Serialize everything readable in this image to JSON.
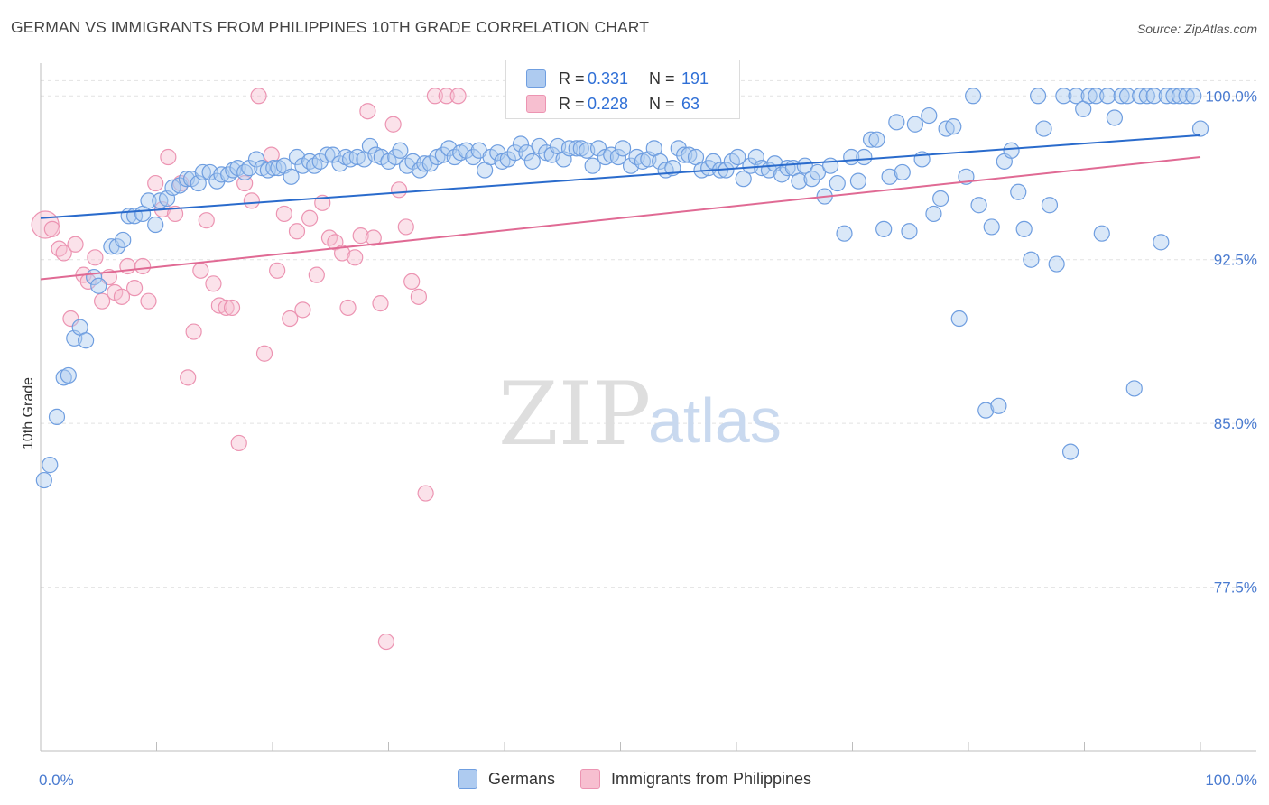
{
  "title": "GERMAN VS IMMIGRANTS FROM PHILIPPINES 10TH GRADE CORRELATION CHART",
  "source": "Source: ZipAtlas.com",
  "watermark": {
    "zip": "ZIP",
    "atlas": "atlas"
  },
  "legend": {
    "rows": [
      {
        "r_label": "R =",
        "r_value": "0.331",
        "n_label": "N =",
        "n_value": "191"
      },
      {
        "r_label": "R =",
        "r_value": "0.228",
        "n_label": "N =",
        "n_value": "63"
      }
    ]
  },
  "bottom_legend": {
    "germans": "Germans",
    "philippines": "Immigrants from Philippines"
  },
  "colors": {
    "blue_fill": "#aecbf0",
    "blue_stroke": "#6f9ee0",
    "blue_line": "#2a6bcc",
    "pink_fill": "#f7bfd0",
    "pink_stroke": "#ec94b2",
    "pink_line": "#e06a94",
    "axis_label": "#4a7bd0"
  },
  "chart_data": {
    "type": "scatter",
    "title": "GERMAN VS IMMIGRANTS FROM PHILIPPINES 10TH GRADE CORRELATION CHART",
    "xlabel": "",
    "ylabel": "10th Grade",
    "xlim": [
      0,
      100
    ],
    "ylim": [
      70.0,
      101.5
    ],
    "x_tick_labels": [
      "0.0%",
      "100.0%"
    ],
    "y_ticks": [
      77.5,
      85.0,
      92.5,
      100.0
    ],
    "y_tick_labels": [
      "77.5%",
      "85.0%",
      "92.5%",
      "100.0%"
    ],
    "grid": true,
    "legend_position": "top-center",
    "series": [
      {
        "name": "Germans",
        "r": 0.331,
        "n": 191,
        "trend": {
          "x": [
            0,
            100
          ],
          "y": [
            94.4,
            98.2
          ]
        },
        "points": [
          [
            0.3,
            82.4
          ],
          [
            0.8,
            83.1
          ],
          [
            1.4,
            85.3
          ],
          [
            2.0,
            87.1
          ],
          [
            2.4,
            87.2
          ],
          [
            2.9,
            88.9
          ],
          [
            3.4,
            89.4
          ],
          [
            3.9,
            88.8
          ],
          [
            4.6,
            91.7
          ],
          [
            5.0,
            91.3
          ],
          [
            6.1,
            93.1
          ],
          [
            6.6,
            93.1
          ],
          [
            7.1,
            93.4
          ],
          [
            7.6,
            94.5
          ],
          [
            8.1,
            94.5
          ],
          [
            8.8,
            94.6
          ],
          [
            9.3,
            95.2
          ],
          [
            9.9,
            94.1
          ],
          [
            10.3,
            95.2
          ],
          [
            10.9,
            95.3
          ],
          [
            11.4,
            95.8
          ],
          [
            12.0,
            95.9
          ],
          [
            12.6,
            96.2
          ],
          [
            13.0,
            96.2
          ],
          [
            13.6,
            96.0
          ],
          [
            14.0,
            96.5
          ],
          [
            14.6,
            96.5
          ],
          [
            15.2,
            96.1
          ],
          [
            15.6,
            96.4
          ],
          [
            16.2,
            96.4
          ],
          [
            16.6,
            96.6
          ],
          [
            17.0,
            96.7
          ],
          [
            17.6,
            96.5
          ],
          [
            18.0,
            96.7
          ],
          [
            18.6,
            97.1
          ],
          [
            19.1,
            96.7
          ],
          [
            19.6,
            96.6
          ],
          [
            20.1,
            96.7
          ],
          [
            20.5,
            96.7
          ],
          [
            21.0,
            96.8
          ],
          [
            21.6,
            96.3
          ],
          [
            22.1,
            97.2
          ],
          [
            22.6,
            96.8
          ],
          [
            23.2,
            97.0
          ],
          [
            23.6,
            96.8
          ],
          [
            24.1,
            97.0
          ],
          [
            24.7,
            97.3
          ],
          [
            25.2,
            97.3
          ],
          [
            25.8,
            96.9
          ],
          [
            26.3,
            97.2
          ],
          [
            26.7,
            97.1
          ],
          [
            27.3,
            97.2
          ],
          [
            27.9,
            97.1
          ],
          [
            28.4,
            97.7
          ],
          [
            28.9,
            97.3
          ],
          [
            29.4,
            97.2
          ],
          [
            30.0,
            97.0
          ],
          [
            30.6,
            97.2
          ],
          [
            31.0,
            97.5
          ],
          [
            31.6,
            96.8
          ],
          [
            32.1,
            97.0
          ],
          [
            32.7,
            96.6
          ],
          [
            33.1,
            96.9
          ],
          [
            33.6,
            96.9
          ],
          [
            34.2,
            97.2
          ],
          [
            34.7,
            97.3
          ],
          [
            35.2,
            97.6
          ],
          [
            35.7,
            97.2
          ],
          [
            36.2,
            97.4
          ],
          [
            36.7,
            97.5
          ],
          [
            37.3,
            97.2
          ],
          [
            37.8,
            97.5
          ],
          [
            38.3,
            96.6
          ],
          [
            38.8,
            97.2
          ],
          [
            39.4,
            97.4
          ],
          [
            39.8,
            97.0
          ],
          [
            40.3,
            97.1
          ],
          [
            40.9,
            97.4
          ],
          [
            41.4,
            97.8
          ],
          [
            41.9,
            97.4
          ],
          [
            42.4,
            97.0
          ],
          [
            43.0,
            97.7
          ],
          [
            43.6,
            97.4
          ],
          [
            44.1,
            97.3
          ],
          [
            44.6,
            97.7
          ],
          [
            45.1,
            97.1
          ],
          [
            45.6,
            97.6
          ],
          [
            46.2,
            97.6
          ],
          [
            46.6,
            97.6
          ],
          [
            47.1,
            97.5
          ],
          [
            47.6,
            96.8
          ],
          [
            48.1,
            97.6
          ],
          [
            48.7,
            97.2
          ],
          [
            49.2,
            97.3
          ],
          [
            49.8,
            97.2
          ],
          [
            50.2,
            97.6
          ],
          [
            50.9,
            96.8
          ],
          [
            51.4,
            97.2
          ],
          [
            51.9,
            97.0
          ],
          [
            52.4,
            97.1
          ],
          [
            52.9,
            97.6
          ],
          [
            53.4,
            97.0
          ],
          [
            53.9,
            96.6
          ],
          [
            54.5,
            96.7
          ],
          [
            55.0,
            97.6
          ],
          [
            55.5,
            97.3
          ],
          [
            55.9,
            97.3
          ],
          [
            56.5,
            97.2
          ],
          [
            57.0,
            96.6
          ],
          [
            57.6,
            96.7
          ],
          [
            58.0,
            97.0
          ],
          [
            58.6,
            96.6
          ],
          [
            59.1,
            96.6
          ],
          [
            59.6,
            97.0
          ],
          [
            60.1,
            97.2
          ],
          [
            60.6,
            96.2
          ],
          [
            61.2,
            96.8
          ],
          [
            61.7,
            97.2
          ],
          [
            62.2,
            96.7
          ],
          [
            62.8,
            96.6
          ],
          [
            63.3,
            96.9
          ],
          [
            63.9,
            96.4
          ],
          [
            64.4,
            96.7
          ],
          [
            64.9,
            96.7
          ],
          [
            65.4,
            96.1
          ],
          [
            65.9,
            96.8
          ],
          [
            66.5,
            96.2
          ],
          [
            67.0,
            96.5
          ],
          [
            67.6,
            95.4
          ],
          [
            68.1,
            96.8
          ],
          [
            68.7,
            96.0
          ],
          [
            69.3,
            93.7
          ],
          [
            69.9,
            97.2
          ],
          [
            70.5,
            96.1
          ],
          [
            71.0,
            97.2
          ],
          [
            71.6,
            98.0
          ],
          [
            72.1,
            98.0
          ],
          [
            72.7,
            93.9
          ],
          [
            73.2,
            96.3
          ],
          [
            73.8,
            98.8
          ],
          [
            74.3,
            96.5
          ],
          [
            74.9,
            93.8
          ],
          [
            75.4,
            98.7
          ],
          [
            76.0,
            97.1
          ],
          [
            76.6,
            99.1
          ],
          [
            77.0,
            94.6
          ],
          [
            77.6,
            95.3
          ],
          [
            78.1,
            98.5
          ],
          [
            78.7,
            98.6
          ],
          [
            79.2,
            89.8
          ],
          [
            79.8,
            96.3
          ],
          [
            80.4,
            100.0
          ],
          [
            80.9,
            95.0
          ],
          [
            81.5,
            85.6
          ],
          [
            82.0,
            94.0
          ],
          [
            82.6,
            85.8
          ],
          [
            83.1,
            97.0
          ],
          [
            83.7,
            97.5
          ],
          [
            84.3,
            95.6
          ],
          [
            84.8,
            93.9
          ],
          [
            85.4,
            92.5
          ],
          [
            86.0,
            100.0
          ],
          [
            86.5,
            98.5
          ],
          [
            87.0,
            95.0
          ],
          [
            87.6,
            92.3
          ],
          [
            88.2,
            100.0
          ],
          [
            88.8,
            83.7
          ],
          [
            89.3,
            100.0
          ],
          [
            89.9,
            99.4
          ],
          [
            90.4,
            100.0
          ],
          [
            91.0,
            100.0
          ],
          [
            91.5,
            93.7
          ],
          [
            92.0,
            100.0
          ],
          [
            92.6,
            99.0
          ],
          [
            93.2,
            100.0
          ],
          [
            93.7,
            100.0
          ],
          [
            94.3,
            86.6
          ],
          [
            94.8,
            100.0
          ],
          [
            95.4,
            100.0
          ],
          [
            96.0,
            100.0
          ],
          [
            96.6,
            93.3
          ],
          [
            97.1,
            100.0
          ],
          [
            97.7,
            100.0
          ],
          [
            98.2,
            100.0
          ],
          [
            98.8,
            100.0
          ],
          [
            99.4,
            100.0
          ],
          [
            100.0,
            98.5
          ]
        ]
      },
      {
        "name": "Immigrants from Philippines",
        "r": 0.228,
        "n": 63,
        "trend": {
          "x": [
            0,
            100
          ],
          "y": [
            91.6,
            97.2
          ]
        },
        "points": [
          [
            0.4,
            94.1
          ],
          [
            1.0,
            93.9
          ],
          [
            1.6,
            93.0
          ],
          [
            2.0,
            92.8
          ],
          [
            2.6,
            89.8
          ],
          [
            3.0,
            93.2
          ],
          [
            3.7,
            91.8
          ],
          [
            4.1,
            91.5
          ],
          [
            4.7,
            92.6
          ],
          [
            5.3,
            90.6
          ],
          [
            5.9,
            91.7
          ],
          [
            6.4,
            91.0
          ],
          [
            7.0,
            90.8
          ],
          [
            7.5,
            92.2
          ],
          [
            8.1,
            91.2
          ],
          [
            8.8,
            92.2
          ],
          [
            9.3,
            90.6
          ],
          [
            9.9,
            96.0
          ],
          [
            10.5,
            94.8
          ],
          [
            11.0,
            97.2
          ],
          [
            11.6,
            94.6
          ],
          [
            12.1,
            96.0
          ],
          [
            12.7,
            87.1
          ],
          [
            13.2,
            89.2
          ],
          [
            13.8,
            92.0
          ],
          [
            14.3,
            94.3
          ],
          [
            14.9,
            91.4
          ],
          [
            15.4,
            90.4
          ],
          [
            16.0,
            90.3
          ],
          [
            16.5,
            90.3
          ],
          [
            17.1,
            84.1
          ],
          [
            17.6,
            96.0
          ],
          [
            18.2,
            95.2
          ],
          [
            18.8,
            100.0
          ],
          [
            19.3,
            88.2
          ],
          [
            19.9,
            97.3
          ],
          [
            20.4,
            92.0
          ],
          [
            21.0,
            94.6
          ],
          [
            21.5,
            89.8
          ],
          [
            22.1,
            93.8
          ],
          [
            22.6,
            90.2
          ],
          [
            23.2,
            94.4
          ],
          [
            23.8,
            91.8
          ],
          [
            24.3,
            95.1
          ],
          [
            24.9,
            93.5
          ],
          [
            25.4,
            93.3
          ],
          [
            26.0,
            92.8
          ],
          [
            26.5,
            90.3
          ],
          [
            27.1,
            92.6
          ],
          [
            27.6,
            93.6
          ],
          [
            28.2,
            99.3
          ],
          [
            28.7,
            93.5
          ],
          [
            29.3,
            90.5
          ],
          [
            29.8,
            75.0
          ],
          [
            30.4,
            98.7
          ],
          [
            30.9,
            95.7
          ],
          [
            31.5,
            94.0
          ],
          [
            32.0,
            91.5
          ],
          [
            32.6,
            90.8
          ],
          [
            33.2,
            81.8
          ],
          [
            34.0,
            100.0
          ],
          [
            35.0,
            100.0
          ],
          [
            36.0,
            100.0
          ]
        ]
      }
    ]
  }
}
